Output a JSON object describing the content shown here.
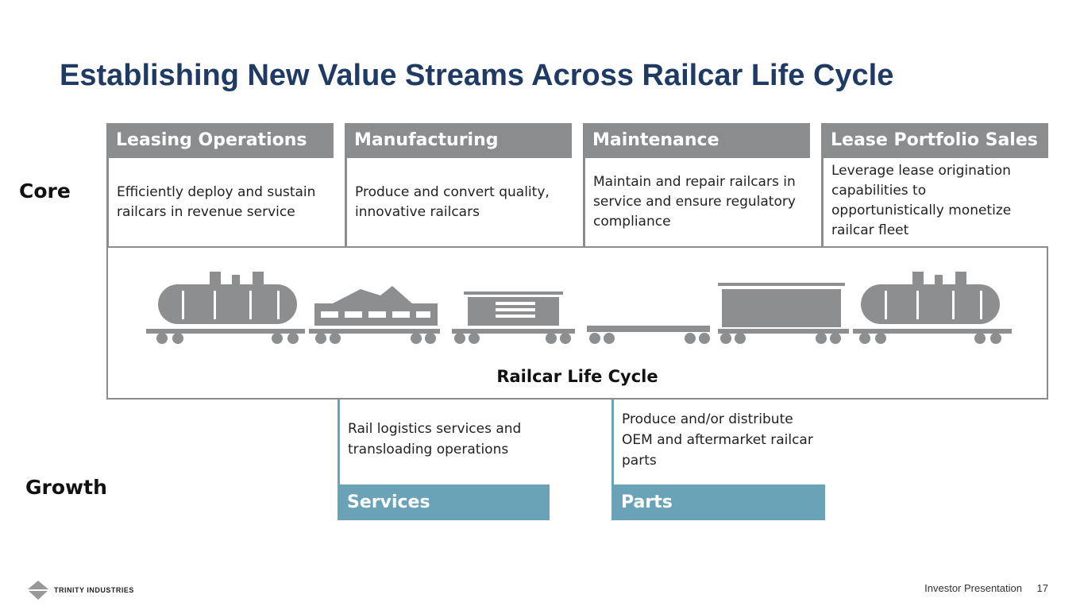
{
  "title": "Establishing New Value Streams Across Railcar Life Cycle",
  "labels": {
    "core": "Core",
    "growth": "Growth"
  },
  "core": [
    {
      "title": "Leasing Operations",
      "desc": "Efficiently deploy and sustain railcars in revenue service"
    },
    {
      "title": "Manufacturing",
      "desc": "Produce and convert quality, innovative railcars"
    },
    {
      "title": "Maintenance",
      "desc": "Maintain and repair railcars in service and ensure regulatory compliance"
    },
    {
      "title": "Lease Portfolio Sales",
      "desc": "Leverage lease origination capabilities to opportunistically monetize railcar fleet"
    }
  ],
  "cycle_label": "Railcar Life Cycle",
  "growth": [
    {
      "title": "Services",
      "desc": "Rail logistics services and transloading operations"
    },
    {
      "title": "Parts",
      "desc": "Produce and/or distribute OEM and aftermarket railcar parts"
    }
  ],
  "footer": {
    "logo": "TRINITY INDUSTRIES",
    "text": "Investor Presentation",
    "page": "17"
  },
  "colors": {
    "title": "#1f3b64",
    "core_header": "#8a8c8e",
    "growth_header": "#6aa3b8"
  }
}
